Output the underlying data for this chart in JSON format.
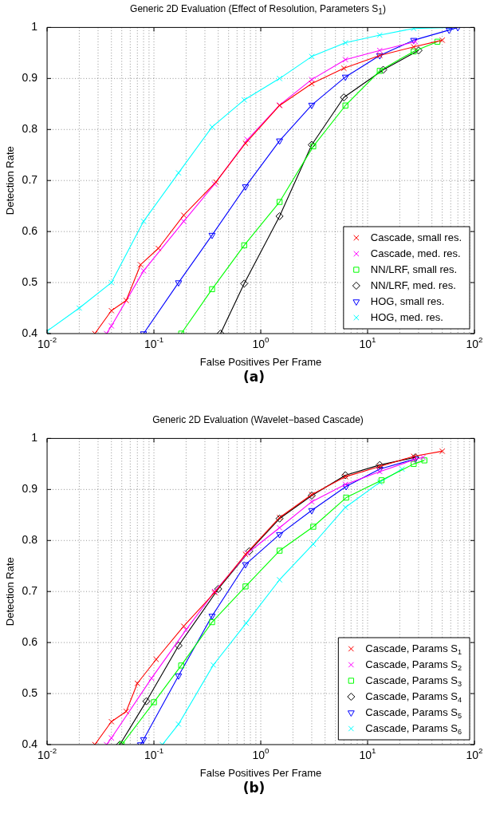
{
  "chart_data": [
    {
      "type": "line",
      "title": "Generic 2D Evaluation (Effect of Resolution, Parameters S$_{1}$)",
      "xlabel": "False Positives Per Frame",
      "ylabel": "Detection Rate",
      "log": "x",
      "grid": true,
      "legend": "bottom right",
      "xlim": [
        0.01,
        100
      ],
      "xticks": [
        {
          "value": 0.01,
          "label": "10$^{-2}$"
        },
        {
          "value": 0.1,
          "label": "10$^{-1}$"
        },
        {
          "value": 1,
          "label": "10$^{0}$"
        },
        {
          "value": 10,
          "label": "10$^{1}$"
        },
        {
          "value": 100,
          "label": "10$^{2}$"
        }
      ],
      "ylim": [
        0.4,
        1
      ],
      "yticks": [
        0.4,
        0.5,
        0.6,
        0.7,
        0.8,
        0.9,
        1
      ],
      "annotations": [
        "(a)"
      ],
      "series": [
        {
          "name": "Cascade, small res.",
          "color": "#ff0000",
          "marker": "cross",
          "x": [
            0.028,
            0.04,
            0.055,
            0.075,
            0.11,
            0.19,
            0.38,
            0.72,
            1.5,
            3.0,
            6.0,
            13,
            27,
            50
          ],
          "values": [
            0.4,
            0.445,
            0.465,
            0.535,
            0.567,
            0.632,
            0.697,
            0.773,
            0.847,
            0.89,
            0.92,
            0.945,
            0.962,
            0.975
          ]
        },
        {
          "name": "Cascade, med. res.",
          "color": "#ff00ff",
          "marker": "cross",
          "x": [
            0.036,
            0.04,
            0.08,
            0.19,
            0.37,
            0.75,
            1.5,
            3.0,
            6.2,
            13,
            28
          ],
          "values": [
            0.4,
            0.415,
            0.523,
            0.62,
            0.693,
            0.78,
            0.848,
            0.898,
            0.937,
            0.955,
            0.972
          ]
        },
        {
          "name": "NN/LRF, small res.",
          "color": "#00ff00",
          "marker": "square",
          "x": [
            0.18,
            0.35,
            0.7,
            1.5,
            3.1,
            6.2,
            13,
            27,
            45
          ],
          "values": [
            0.4,
            0.487,
            0.573,
            0.658,
            0.767,
            0.847,
            0.915,
            0.953,
            0.972
          ]
        },
        {
          "name": "NN/LRF, med. res.",
          "color": "#000000",
          "marker": "diamond",
          "x": [
            0.42,
            0.7,
            1.5,
            3.0,
            6.0,
            14,
            30
          ],
          "values": [
            0.4,
            0.498,
            0.63,
            0.77,
            0.863,
            0.917,
            0.955
          ]
        },
        {
          "name": "HOG, small res.",
          "color": "#0000ff",
          "marker": "triangle",
          "x": [
            0.08,
            0.17,
            0.35,
            0.72,
            1.5,
            3.0,
            6.2,
            13,
            27,
            58,
            70
          ],
          "values": [
            0.4,
            0.5,
            0.593,
            0.688,
            0.778,
            0.848,
            0.903,
            0.945,
            0.975,
            0.995,
            1.0
          ]
        },
        {
          "name": "HOG, med. res.",
          "color": "#00ffff",
          "marker": "cross",
          "x": [
            0.01,
            0.02,
            0.04,
            0.08,
            0.17,
            0.35,
            0.7,
            1.5,
            3.0,
            6.2,
            13,
            27,
            60
          ],
          "values": [
            0.405,
            0.45,
            0.5,
            0.62,
            0.715,
            0.805,
            0.858,
            0.9,
            0.943,
            0.97,
            0.985,
            0.998,
            1.0
          ]
        }
      ]
    },
    {
      "type": "line",
      "title": "Generic 2D Evaluation (Wavelet−based Cascade)",
      "xlabel": "False Positives Per Frame",
      "ylabel": "Detection Rate",
      "log": "x",
      "grid": true,
      "legend": "bottom right",
      "xlim": [
        0.01,
        100
      ],
      "xticks": [
        {
          "value": 0.01,
          "label": "10$^{-2}$"
        },
        {
          "value": 0.1,
          "label": "10$^{-1}$"
        },
        {
          "value": 1,
          "label": "10$^{0}$"
        },
        {
          "value": 10,
          "label": "10$^{1}$"
        },
        {
          "value": 100,
          "label": "10$^{2}$"
        }
      ],
      "ylim": [
        0.4,
        1
      ],
      "yticks": [
        0.4,
        0.5,
        0.6,
        0.7,
        0.8,
        0.9,
        1
      ],
      "annotations": [
        "(b)"
      ],
      "series": [
        {
          "name": "Cascade, Params S$_{1}$",
          "color": "#ff0000",
          "marker": "cross",
          "x": [
            0.028,
            0.04,
            0.055,
            0.07,
            0.105,
            0.19,
            0.37,
            0.72,
            1.5,
            3.0,
            6.2,
            13,
            27,
            50
          ],
          "values": [
            0.4,
            0.445,
            0.465,
            0.52,
            0.567,
            0.632,
            0.698,
            0.773,
            0.845,
            0.89,
            0.925,
            0.945,
            0.965,
            0.975
          ]
        },
        {
          "name": "Cascade, Params S$_{2}$",
          "color": "#ff00ff",
          "marker": "cross",
          "x": [
            0.036,
            0.04,
            0.095,
            0.2,
            0.37,
            0.75,
            1.5,
            3.0,
            6.2,
            13,
            27,
            33
          ],
          "values": [
            0.4,
            0.413,
            0.53,
            0.625,
            0.7,
            0.775,
            0.825,
            0.876,
            0.91,
            0.935,
            0.958,
            0.963
          ]
        },
        {
          "name": "Cascade, Params S$_{3}$",
          "color": "#00ff00",
          "marker": "square",
          "x": [
            0.05,
            0.1,
            0.18,
            0.35,
            0.72,
            1.5,
            3.1,
            6.3,
            13.5,
            27,
            34
          ],
          "values": [
            0.4,
            0.483,
            0.555,
            0.64,
            0.71,
            0.78,
            0.827,
            0.884,
            0.918,
            0.95,
            0.957
          ]
        },
        {
          "name": "Cascade, Params S$_{4}$",
          "color": "#000000",
          "marker": "diamond",
          "x": [
            0.048,
            0.085,
            0.17,
            0.4,
            0.78,
            1.5,
            3.0,
            6.2,
            13,
            28
          ],
          "values": [
            0.4,
            0.485,
            0.594,
            0.705,
            0.779,
            0.843,
            0.888,
            0.928,
            0.948,
            0.963
          ]
        },
        {
          "name": "Cascade, Params S$_{5}$",
          "color": "#0000ff",
          "marker": "triangle",
          "x": [
            0.075,
            0.08,
            0.17,
            0.35,
            0.72,
            1.5,
            3.0,
            6.3,
            13,
            28
          ],
          "values": [
            0.4,
            0.41,
            0.535,
            0.652,
            0.753,
            0.812,
            0.859,
            0.906,
            0.94,
            0.96
          ]
        },
        {
          "name": "Cascade, Params S$_{6}$",
          "color": "#00ffff",
          "marker": "cross",
          "x": [
            0.12,
            0.17,
            0.36,
            0.73,
            1.5,
            3.1,
            6.2,
            13,
            21
          ],
          "values": [
            0.4,
            0.44,
            0.556,
            0.638,
            0.723,
            0.793,
            0.865,
            0.914,
            0.94
          ]
        }
      ]
    }
  ]
}
